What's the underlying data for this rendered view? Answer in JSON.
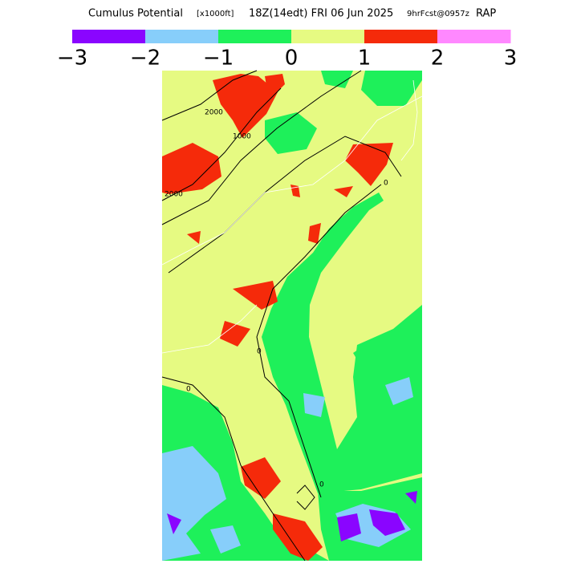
{
  "header": {
    "title": "Cumulus Potential",
    "units": "[x1000ft]",
    "time": "18Z(14edt) FRI 06 Jun 2025",
    "forecast": "9hrFcst@0957z",
    "model": "RAP"
  },
  "colorbar": {
    "colors": [
      "#8a05ff",
      "#87cefa",
      "#1ef05a",
      "#e6fa82",
      "#f52a0a",
      "#ff88ff"
    ],
    "labels": [
      "−3",
      "−2",
      "−1",
      "0",
      "1",
      "2",
      "3"
    ]
  },
  "contour_labels": [
    "2000",
    "1000",
    "2000",
    "0",
    "0",
    "0",
    "0"
  ]
}
